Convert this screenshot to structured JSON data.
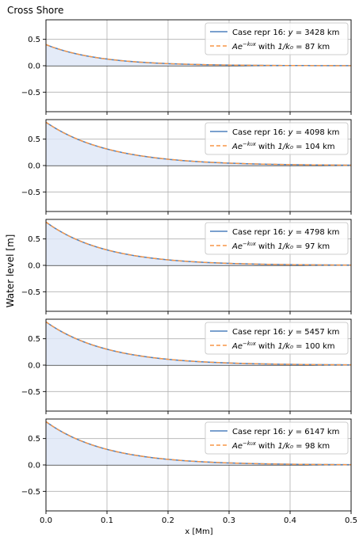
{
  "chart_data": {
    "type": "line",
    "title": "Cross Shore",
    "xlabel": "x [Mm]",
    "ylabel": "Water level [m]",
    "xlim": [
      0,
      0.5
    ],
    "ylim": [
      -0.87,
      0.87
    ],
    "x_ticks": [
      "0.0",
      "0.1",
      "0.2",
      "0.3",
      "0.4",
      "0.5"
    ],
    "y_ticks": [
      "0.5",
      "0.0",
      "−0.5"
    ],
    "grid": true,
    "legend_position": "top-right",
    "colors": {
      "data": "#4f81bd",
      "fit": "#f79646",
      "fill": "#dde6f6",
      "grid": "#b0b0b0"
    },
    "panels": [
      {
        "case_label": "Case repr 16: ",
        "y_value": "3428",
        "k_inv": "87",
        "amplitude": 0.4,
        "decay_km": 87,
        "series": [
          {
            "name": "Case repr 16: y = 3428 km",
            "style": "solid"
          },
          {
            "name": "Ae^{-k0x} with 1/k0 = 87 km",
            "style": "dashed"
          }
        ]
      },
      {
        "case_label": "Case repr 16: ",
        "y_value": "4098",
        "k_inv": "104",
        "amplitude": 0.82,
        "decay_km": 104,
        "series": [
          {
            "name": "Case repr 16: y = 4098 km",
            "style": "solid"
          },
          {
            "name": "Ae^{-k0x} with 1/k0 = 104 km",
            "style": "dashed"
          }
        ]
      },
      {
        "case_label": "Case repr 16: ",
        "y_value": "4798",
        "k_inv": "97",
        "amplitude": 0.82,
        "decay_km": 97,
        "series": [
          {
            "name": "Case repr 16: y = 4798 km",
            "style": "solid"
          },
          {
            "name": "Ae^{-k0x} with 1/k0 = 97 km",
            "style": "dashed"
          }
        ]
      },
      {
        "case_label": "Case repr 16: ",
        "y_value": "5457",
        "k_inv": "100",
        "amplitude": 0.82,
        "decay_km": 100,
        "series": [
          {
            "name": "Case repr 16: y = 5457 km",
            "style": "solid"
          },
          {
            "name": "Ae^{-k0x} with 1/k0 = 100 km",
            "style": "dashed"
          }
        ]
      },
      {
        "case_label": "Case repr 16: ",
        "y_value": "6147",
        "k_inv": "98",
        "amplitude": 0.82,
        "decay_km": 98,
        "series": [
          {
            "name": "Case repr 16: y = 6147 km",
            "style": "solid"
          },
          {
            "name": "Ae^{-k0x} with 1/k0 = 98 km",
            "style": "dashed"
          }
        ]
      }
    ],
    "legend": {
      "y_symbol": "y",
      "equals": " = ",
      "unit": "km",
      "fit_prefix": "Ae",
      "fit_exponent": "−k₀x",
      "fit_with": " with ",
      "fit_kinv": "1/k₀"
    }
  }
}
